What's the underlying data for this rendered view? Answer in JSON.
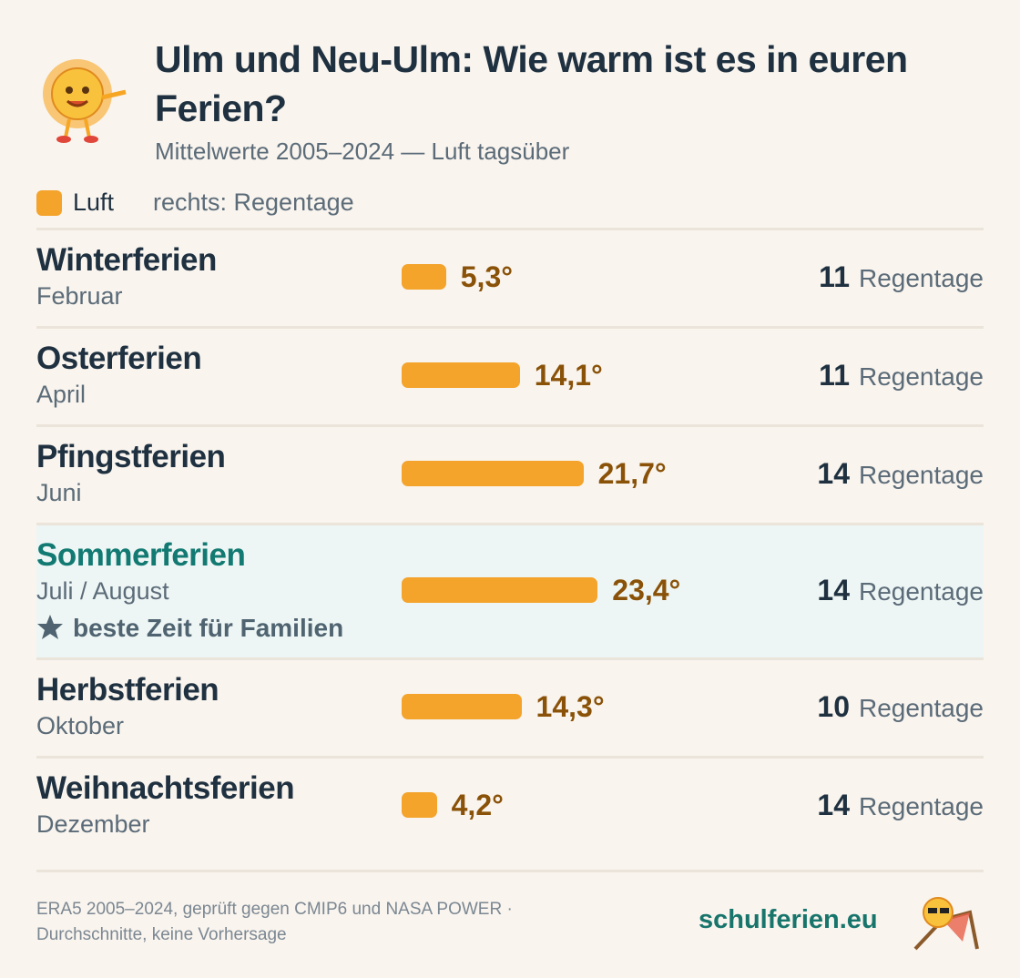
{
  "chart_data": {
    "type": "bar",
    "title": "Ulm und Neu-Ulm: Wie warm ist es in euren Ferien?",
    "subtitle": "Mittelwerte 2005–2024 — Luft tagsüber",
    "legend": {
      "name": "Luft",
      "color": "#f4a32b"
    },
    "legend_note": "rechts: Regentage",
    "categories": [
      "Winterferien",
      "Osterferien",
      "Pfingstferien",
      "Sommerferien",
      "Herbstferien",
      "Weihnachtsferien"
    ],
    "months": [
      "Februar",
      "April",
      "Juni",
      "Juli / August",
      "Oktober",
      "Dezember"
    ],
    "values": [
      5.3,
      14.1,
      21.7,
      23.4,
      14.3,
      4.2
    ],
    "value_labels": [
      "5,3°",
      "14,1°",
      "21,7°",
      "23,4°",
      "14,3°",
      "4,2°"
    ],
    "rain_days": [
      11,
      11,
      14,
      14,
      10,
      14
    ],
    "rain_unit": "Regentage",
    "highlight": {
      "category": "Sommerferien",
      "note": "beste Zeit für Familien"
    }
  },
  "footer": {
    "source": [
      "ERA5 2005–2024, geprüft gegen CMIP6 und NASA POWER ·",
      "Durchschnitte, keine Vorhersage"
    ],
    "brand": "schulferien.eu"
  }
}
